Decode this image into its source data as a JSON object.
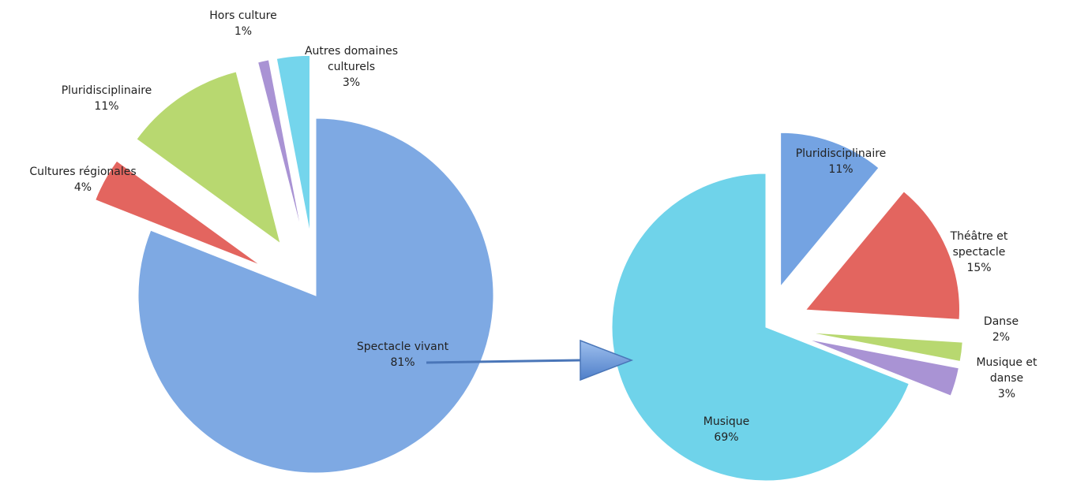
{
  "chart_data": [
    {
      "type": "pie",
      "categories": [
        "Spectacle vivant",
        "Cultures régionales",
        "Pluridisciplinaire",
        "Hors culture",
        "Autres domaines culturels"
      ],
      "values": [
        81,
        4,
        11,
        1,
        3
      ],
      "value_labels": [
        "81%",
        "4%",
        "11%",
        "1%",
        "3%"
      ],
      "colors": [
        "#7ea9e3",
        "#e3655f",
        "#b8d870",
        "#a993d4",
        "#74d5ec"
      ]
    },
    {
      "type": "pie",
      "categories": [
        "Pluridisciplinaire",
        "Théâtre et spectacle",
        "Danse",
        "Musique et danse",
        "Musique"
      ],
      "values": [
        11,
        15,
        2,
        3,
        69
      ],
      "value_labels": [
        "11%",
        "15%",
        "2%",
        "3%",
        "69%"
      ],
      "colors": [
        "#74a3e2",
        "#e3655f",
        "#b8d870",
        "#a993d4",
        "#6fd3ea"
      ]
    }
  ]
}
